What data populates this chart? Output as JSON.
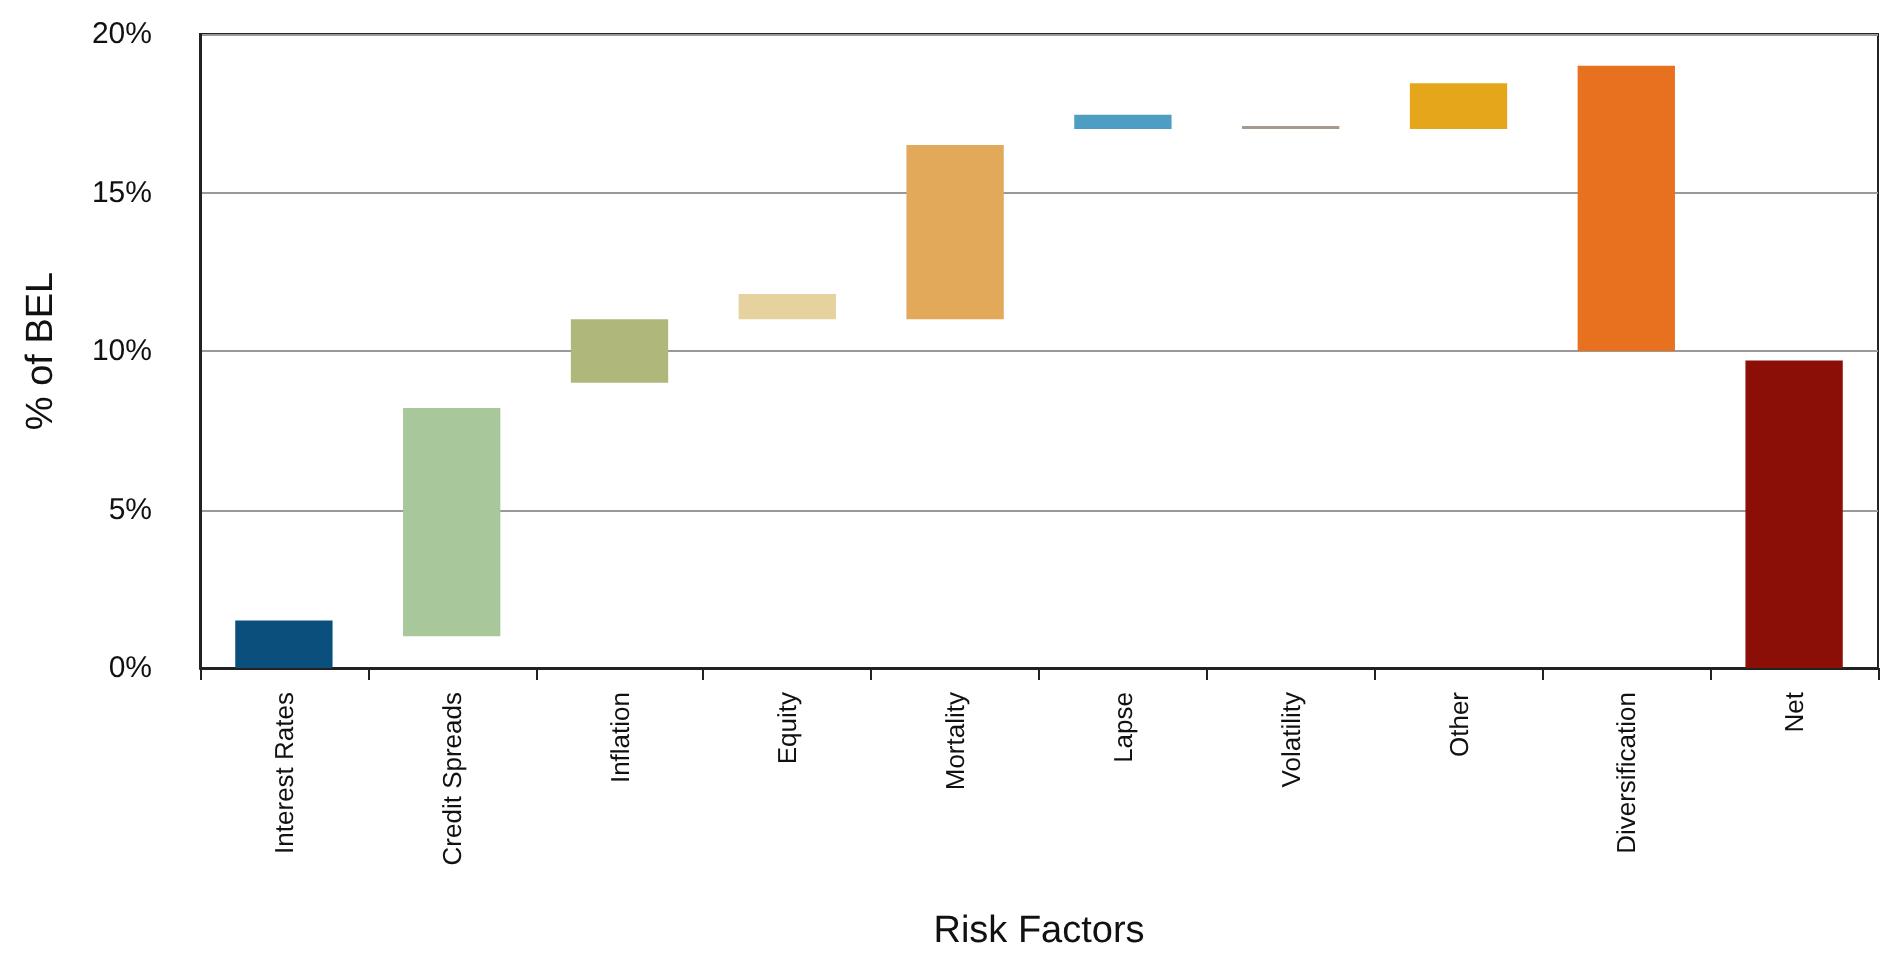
{
  "chart_data": {
    "type": "bar",
    "xlabel": "Risk Factors",
    "ylabel": "% of BEL",
    "categories": [
      "Interest Rates",
      "Credit Spreads",
      "Inflation",
      "Equity",
      "Mortality",
      "Lapse",
      "Volatility",
      "Other",
      "Diversification",
      "Net"
    ],
    "base": [
      0,
      1.0,
      9.0,
      11.0,
      11.0,
      17.0,
      17.0,
      17.0,
      10.0,
      0
    ],
    "values": [
      1.5,
      7.2,
      2.0,
      0.8,
      5.5,
      0.45,
      0.1,
      1.45,
      9.0,
      9.7
    ],
    "colors": [
      "#0b4f7c",
      "#a8c79a",
      "#b0b77a",
      "#e6d29e",
      "#e2a95a",
      "#4e9dc3",
      "#a59a8c",
      "#e6a61c",
      "#e8711f",
      "#8b0f07"
    ],
    "ylim": [
      0,
      20
    ],
    "yticks": [
      {
        "value": 0,
        "label": "0%"
      },
      {
        "value": 5,
        "label": "5%"
      },
      {
        "value": 10,
        "label": "10%"
      },
      {
        "value": 15,
        "label": "15%"
      },
      {
        "value": 20,
        "label": "20%"
      }
    ],
    "grid": "y"
  }
}
